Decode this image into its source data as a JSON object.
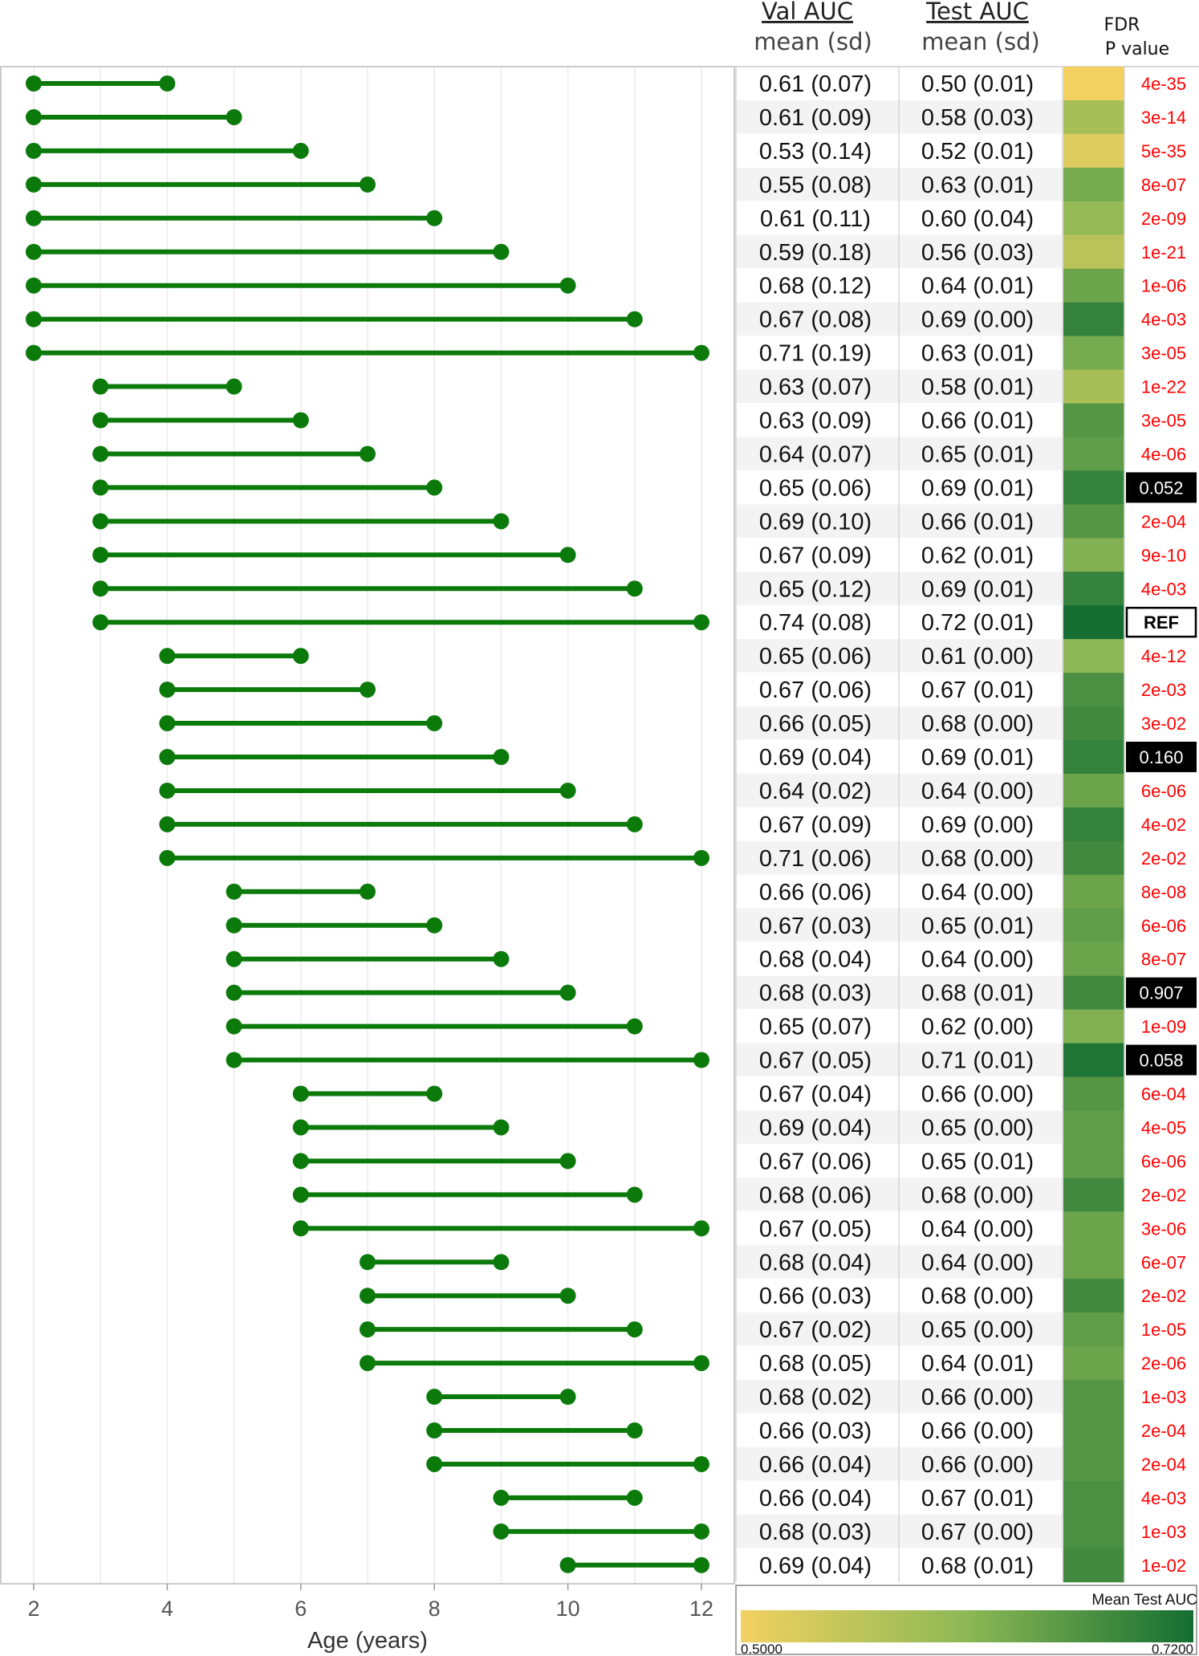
{
  "headers": {
    "val_title": "Val AUC",
    "val_sub": "mean (sd)",
    "test_title": "Test AUC",
    "test_sub": "mean (sd)",
    "fdr_line1": "FDR",
    "fdr_line2": "P value"
  },
  "colors": {
    "segment": "#0b7a0b",
    "pvalue_text": "#ff0000",
    "highlight_box": "#000000",
    "scale_low": "#f2d161",
    "scale_mid": "#8cb855",
    "scale_high": "#146e32"
  },
  "chart_data": {
    "type": "dumbbell-table",
    "xlabel": "Age (years)",
    "xlim": [
      2,
      12
    ],
    "xticks": [
      2,
      4,
      6,
      8,
      10,
      12
    ],
    "grid": "vertical",
    "legend": {
      "title": "Mean Test AUC",
      "min_label": "0.5000",
      "max_label": "0.7200",
      "min": 0.5,
      "max": 0.72,
      "placement": "bottom-right"
    },
    "rows": [
      {
        "start": 2,
        "end": 4,
        "val": "0.61 (0.07)",
        "test": "0.50 (0.01)",
        "test_mean": 0.5,
        "p": "4e-35",
        "p_style": "sig"
      },
      {
        "start": 2,
        "end": 5,
        "val": "0.61 (0.09)",
        "test": "0.58 (0.03)",
        "test_mean": 0.58,
        "p": "3e-14",
        "p_style": "sig"
      },
      {
        "start": 2,
        "end": 6,
        "val": "0.53 (0.14)",
        "test": "0.52 (0.01)",
        "test_mean": 0.52,
        "p": "5e-35",
        "p_style": "sig"
      },
      {
        "start": 2,
        "end": 7,
        "val": "0.55 (0.08)",
        "test": "0.63 (0.01)",
        "test_mean": 0.63,
        "p": "8e-07",
        "p_style": "sig"
      },
      {
        "start": 2,
        "end": 8,
        "val": "0.61 (0.11)",
        "test": "0.60 (0.04)",
        "test_mean": 0.6,
        "p": "2e-09",
        "p_style": "sig"
      },
      {
        "start": 2,
        "end": 9,
        "val": "0.59 (0.18)",
        "test": "0.56 (0.03)",
        "test_mean": 0.56,
        "p": "1e-21",
        "p_style": "sig"
      },
      {
        "start": 2,
        "end": 10,
        "val": "0.68 (0.12)",
        "test": "0.64 (0.01)",
        "test_mean": 0.64,
        "p": "1e-06",
        "p_style": "sig"
      },
      {
        "start": 2,
        "end": 11,
        "val": "0.67 (0.08)",
        "test": "0.69 (0.00)",
        "test_mean": 0.69,
        "p": "4e-03",
        "p_style": "sig"
      },
      {
        "start": 2,
        "end": 12,
        "val": "0.71 (0.19)",
        "test": "0.63 (0.01)",
        "test_mean": 0.63,
        "p": "3e-05",
        "p_style": "sig"
      },
      {
        "start": 3,
        "end": 5,
        "val": "0.63 (0.07)",
        "test": "0.58 (0.01)",
        "test_mean": 0.58,
        "p": "1e-22",
        "p_style": "sig"
      },
      {
        "start": 3,
        "end": 6,
        "val": "0.63 (0.09)",
        "test": "0.66 (0.01)",
        "test_mean": 0.66,
        "p": "3e-05",
        "p_style": "sig"
      },
      {
        "start": 3,
        "end": 7,
        "val": "0.64 (0.07)",
        "test": "0.65 (0.01)",
        "test_mean": 0.65,
        "p": "4e-06",
        "p_style": "sig"
      },
      {
        "start": 3,
        "end": 8,
        "val": "0.65 (0.06)",
        "test": "0.69 (0.01)",
        "test_mean": 0.69,
        "p": "0.052",
        "p_style": "ns"
      },
      {
        "start": 3,
        "end": 9,
        "val": "0.69 (0.10)",
        "test": "0.66 (0.01)",
        "test_mean": 0.66,
        "p": "2e-04",
        "p_style": "sig"
      },
      {
        "start": 3,
        "end": 10,
        "val": "0.67 (0.09)",
        "test": "0.62 (0.01)",
        "test_mean": 0.62,
        "p": "9e-10",
        "p_style": "sig"
      },
      {
        "start": 3,
        "end": 11,
        "val": "0.65 (0.12)",
        "test": "0.69 (0.01)",
        "test_mean": 0.69,
        "p": "4e-03",
        "p_style": "sig"
      },
      {
        "start": 3,
        "end": 12,
        "val": "0.74 (0.08)",
        "test": "0.72 (0.01)",
        "test_mean": 0.72,
        "p": "REF",
        "p_style": "ref"
      },
      {
        "start": 4,
        "end": 6,
        "val": "0.65 (0.06)",
        "test": "0.61 (0.00)",
        "test_mean": 0.61,
        "p": "4e-12",
        "p_style": "sig"
      },
      {
        "start": 4,
        "end": 7,
        "val": "0.67 (0.06)",
        "test": "0.67 (0.01)",
        "test_mean": 0.67,
        "p": "2e-03",
        "p_style": "sig"
      },
      {
        "start": 4,
        "end": 8,
        "val": "0.66 (0.05)",
        "test": "0.68 (0.00)",
        "test_mean": 0.68,
        "p": "3e-02",
        "p_style": "sig"
      },
      {
        "start": 4,
        "end": 9,
        "val": "0.69 (0.04)",
        "test": "0.69 (0.01)",
        "test_mean": 0.69,
        "p": "0.160",
        "p_style": "ns"
      },
      {
        "start": 4,
        "end": 10,
        "val": "0.64 (0.02)",
        "test": "0.64 (0.00)",
        "test_mean": 0.64,
        "p": "6e-06",
        "p_style": "sig"
      },
      {
        "start": 4,
        "end": 11,
        "val": "0.67 (0.09)",
        "test": "0.69 (0.00)",
        "test_mean": 0.69,
        "p": "4e-02",
        "p_style": "sig"
      },
      {
        "start": 4,
        "end": 12,
        "val": "0.71 (0.06)",
        "test": "0.68 (0.00)",
        "test_mean": 0.68,
        "p": "2e-02",
        "p_style": "sig"
      },
      {
        "start": 5,
        "end": 7,
        "val": "0.66 (0.06)",
        "test": "0.64 (0.00)",
        "test_mean": 0.64,
        "p": "8e-08",
        "p_style": "sig"
      },
      {
        "start": 5,
        "end": 8,
        "val": "0.67 (0.03)",
        "test": "0.65 (0.01)",
        "test_mean": 0.65,
        "p": "6e-06",
        "p_style": "sig"
      },
      {
        "start": 5,
        "end": 9,
        "val": "0.68 (0.04)",
        "test": "0.64 (0.00)",
        "test_mean": 0.64,
        "p": "8e-07",
        "p_style": "sig"
      },
      {
        "start": 5,
        "end": 10,
        "val": "0.68 (0.03)",
        "test": "0.68 (0.01)",
        "test_mean": 0.68,
        "p": "0.907",
        "p_style": "ns"
      },
      {
        "start": 5,
        "end": 11,
        "val": "0.65 (0.07)",
        "test": "0.62 (0.00)",
        "test_mean": 0.62,
        "p": "1e-09",
        "p_style": "sig"
      },
      {
        "start": 5,
        "end": 12,
        "val": "0.67 (0.05)",
        "test": "0.71 (0.01)",
        "test_mean": 0.71,
        "p": "0.058",
        "p_style": "ns"
      },
      {
        "start": 6,
        "end": 8,
        "val": "0.67 (0.04)",
        "test": "0.66 (0.00)",
        "test_mean": 0.66,
        "p": "6e-04",
        "p_style": "sig"
      },
      {
        "start": 6,
        "end": 9,
        "val": "0.69 (0.04)",
        "test": "0.65 (0.00)",
        "test_mean": 0.65,
        "p": "4e-05",
        "p_style": "sig"
      },
      {
        "start": 6,
        "end": 10,
        "val": "0.67 (0.06)",
        "test": "0.65 (0.01)",
        "test_mean": 0.65,
        "p": "6e-06",
        "p_style": "sig"
      },
      {
        "start": 6,
        "end": 11,
        "val": "0.68 (0.06)",
        "test": "0.68 (0.00)",
        "test_mean": 0.68,
        "p": "2e-02",
        "p_style": "sig"
      },
      {
        "start": 6,
        "end": 12,
        "val": "0.67 (0.05)",
        "test": "0.64 (0.00)",
        "test_mean": 0.64,
        "p": "3e-06",
        "p_style": "sig"
      },
      {
        "start": 7,
        "end": 9,
        "val": "0.68 (0.04)",
        "test": "0.64 (0.00)",
        "test_mean": 0.64,
        "p": "6e-07",
        "p_style": "sig"
      },
      {
        "start": 7,
        "end": 10,
        "val": "0.66 (0.03)",
        "test": "0.68 (0.00)",
        "test_mean": 0.68,
        "p": "2e-02",
        "p_style": "sig"
      },
      {
        "start": 7,
        "end": 11,
        "val": "0.67 (0.02)",
        "test": "0.65 (0.00)",
        "test_mean": 0.65,
        "p": "1e-05",
        "p_style": "sig"
      },
      {
        "start": 7,
        "end": 12,
        "val": "0.68 (0.05)",
        "test": "0.64 (0.01)",
        "test_mean": 0.64,
        "p": "2e-06",
        "p_style": "sig"
      },
      {
        "start": 8,
        "end": 10,
        "val": "0.68 (0.02)",
        "test": "0.66 (0.00)",
        "test_mean": 0.66,
        "p": "1e-03",
        "p_style": "sig"
      },
      {
        "start": 8,
        "end": 11,
        "val": "0.66 (0.03)",
        "test": "0.66 (0.00)",
        "test_mean": 0.66,
        "p": "2e-04",
        "p_style": "sig"
      },
      {
        "start": 8,
        "end": 12,
        "val": "0.66 (0.04)",
        "test": "0.66 (0.00)",
        "test_mean": 0.66,
        "p": "2e-04",
        "p_style": "sig"
      },
      {
        "start": 9,
        "end": 11,
        "val": "0.66 (0.04)",
        "test": "0.67 (0.01)",
        "test_mean": 0.67,
        "p": "4e-03",
        "p_style": "sig"
      },
      {
        "start": 9,
        "end": 12,
        "val": "0.68 (0.03)",
        "test": "0.67 (0.00)",
        "test_mean": 0.67,
        "p": "1e-03",
        "p_style": "sig"
      },
      {
        "start": 10,
        "end": 12,
        "val": "0.69 (0.04)",
        "test": "0.68 (0.01)",
        "test_mean": 0.68,
        "p": "1e-02",
        "p_style": "sig"
      }
    ]
  }
}
